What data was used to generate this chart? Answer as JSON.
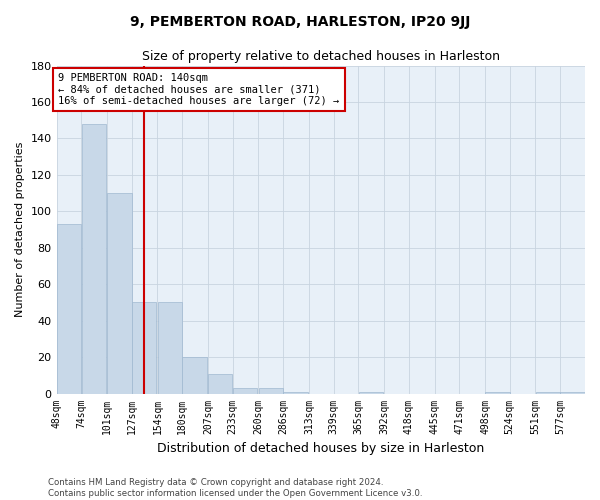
{
  "title": "9, PEMBERTON ROAD, HARLESTON, IP20 9JJ",
  "subtitle": "Size of property relative to detached houses in Harleston",
  "xlabel": "Distribution of detached houses by size in Harleston",
  "ylabel": "Number of detached properties",
  "annotation_line1": "9 PEMBERTON ROAD: 140sqm",
  "annotation_line2": "← 84% of detached houses are smaller (371)",
  "annotation_line3": "16% of semi-detached houses are larger (72) →",
  "bin_labels": [
    "48sqm",
    "74sqm",
    "101sqm",
    "127sqm",
    "154sqm",
    "180sqm",
    "207sqm",
    "233sqm",
    "260sqm",
    "286sqm",
    "313sqm",
    "339sqm",
    "365sqm",
    "392sqm",
    "418sqm",
    "445sqm",
    "471sqm",
    "498sqm",
    "524sqm",
    "551sqm",
    "577sqm"
  ],
  "bin_left_edges": [
    48,
    74,
    101,
    127,
    154,
    180,
    207,
    233,
    260,
    286,
    313,
    339,
    365,
    392,
    418,
    445,
    471,
    498,
    524,
    551,
    577
  ],
  "bin_width": 26,
  "bar_heights": [
    93,
    148,
    110,
    50,
    50,
    20,
    11,
    3,
    3,
    1,
    0,
    0,
    1,
    0,
    0,
    0,
    0,
    1,
    0,
    1,
    1
  ],
  "bar_color": "#c8d8e8",
  "bar_edge_color": "#a0b8d0",
  "vline_color": "#cc0000",
  "vline_x": 140,
  "xlim_left": 48,
  "xlim_right": 603,
  "ylim": [
    0,
    180
  ],
  "yticks": [
    0,
    20,
    40,
    60,
    80,
    100,
    120,
    140,
    160,
    180
  ],
  "grid_color": "#c8d4e0",
  "background_color": "#e8f0f8",
  "footer_line1": "Contains HM Land Registry data © Crown copyright and database right 2024.",
  "footer_line2": "Contains public sector information licensed under the Open Government Licence v3.0."
}
